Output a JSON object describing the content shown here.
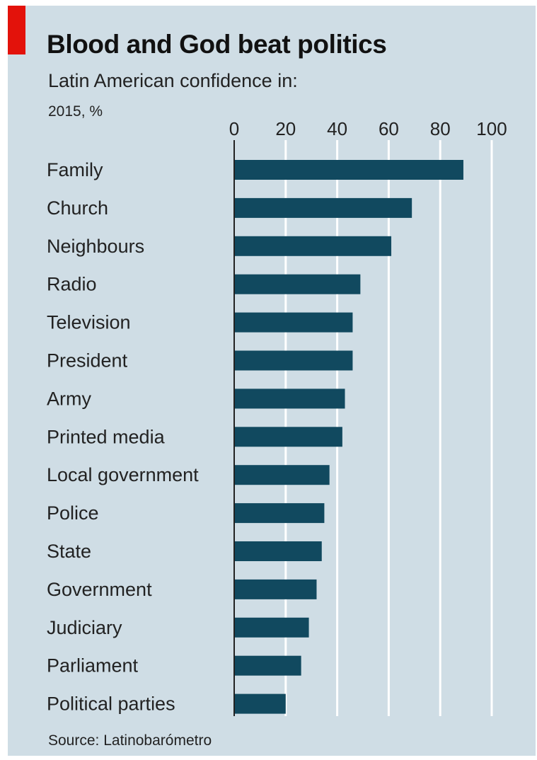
{
  "header": {
    "title": "Blood and God beat politics",
    "subtitle": "Latin American confidence in:",
    "unit": "2015, %"
  },
  "footer": {
    "source": "Source: Latinobarómetro"
  },
  "colors": {
    "bar": "#11495f",
    "background": "#cfdde5",
    "gridline": "#ffffff",
    "accent": "#e3120b",
    "axis": "#222222"
  },
  "chart_data": {
    "type": "bar",
    "orientation": "horizontal",
    "categories": [
      "Family",
      "Church",
      "Neighbours",
      "Radio",
      "Television",
      "President",
      "Army",
      "Printed media",
      "Local government",
      "Police",
      "State",
      "Government",
      "Judiciary",
      "Parliament",
      "Political parties"
    ],
    "values": [
      89,
      69,
      61,
      49,
      46,
      46,
      43,
      42,
      37,
      35,
      34,
      32,
      29,
      26,
      20
    ],
    "xlim": [
      0,
      100
    ],
    "xticks": [
      0,
      20,
      40,
      60,
      80,
      100
    ],
    "xtick_labels": [
      "0",
      "20",
      "40",
      "60",
      "80",
      "100"
    ],
    "tick_position": "top",
    "grid": true,
    "legend": "none"
  }
}
